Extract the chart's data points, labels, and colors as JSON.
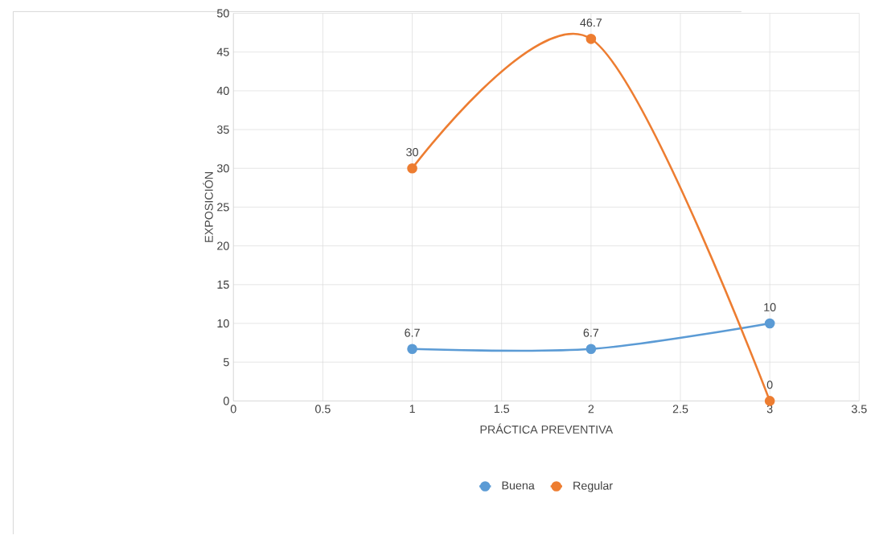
{
  "chart_data": {
    "type": "line",
    "xlabel": "PRÁCTICA PREVENTIVA",
    "ylabel": "EXPOSICIÓN",
    "x": [
      1,
      2,
      3
    ],
    "series": [
      {
        "name": "Buena",
        "color": "#5b9bd5",
        "values": [
          6.7,
          6.7,
          10
        ]
      },
      {
        "name": "Regular",
        "color": "#ed7d31",
        "values": [
          30,
          46.7,
          0
        ]
      }
    ],
    "xlim": [
      0,
      3.5
    ],
    "xticks": [
      0,
      0.5,
      1,
      1.5,
      2,
      2.5,
      3,
      3.5
    ],
    "ylim": [
      0,
      50
    ],
    "yticks": [
      0,
      5,
      10,
      15,
      20,
      25,
      30,
      35,
      40,
      45,
      50
    ],
    "grid": true,
    "legend": "bottom",
    "marker": "circle",
    "line_style": "solid",
    "data_labels": true
  }
}
